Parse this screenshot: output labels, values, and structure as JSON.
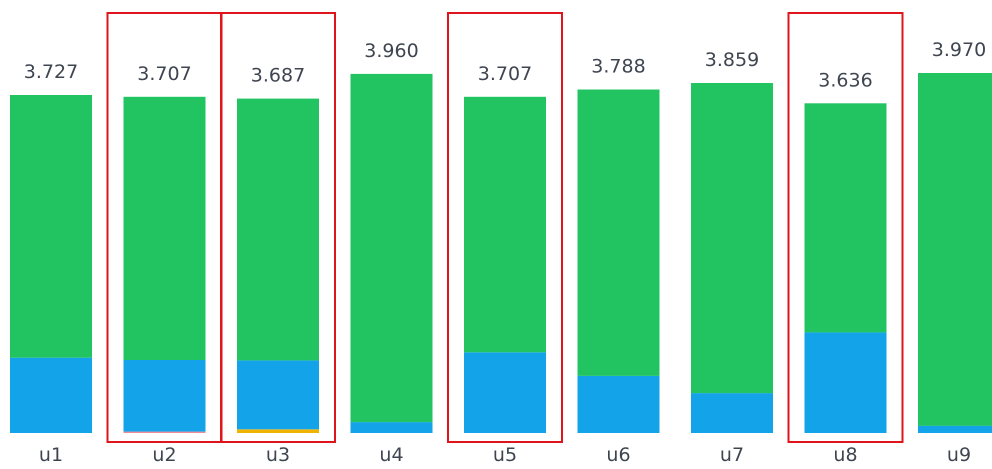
{
  "chart_data": {
    "type": "bar",
    "stacked": true,
    "categories": [
      "u1",
      "u2",
      "u3",
      "u4",
      "u5",
      "u6",
      "u7",
      "u8",
      "u9"
    ],
    "totals": [
      "3.727",
      "3.707",
      "3.687",
      "3.960",
      "3.707",
      "3.788",
      "3.859",
      "3.636",
      "3.970"
    ],
    "series": [
      {
        "color": "#f0b400",
        "values": [
          0,
          0,
          0.04,
          0,
          0,
          0,
          0,
          0,
          0
        ]
      },
      {
        "color": "#f28b96",
        "values": [
          0,
          0.015,
          0,
          0,
          0,
          0,
          0,
          0,
          0
        ]
      },
      {
        "color": "#12a3e8",
        "values": [
          0.83,
          0.79,
          0.76,
          0.12,
          0.89,
          0.63,
          0.44,
          1.11,
          0.08
        ]
      },
      {
        "color": "#22c462",
        "values": [
          2.897,
          2.902,
          2.887,
          3.84,
          2.817,
          3.158,
          3.419,
          2.526,
          3.89
        ]
      }
    ],
    "highlighted": [
      "u2",
      "u3",
      "u5",
      "u8"
    ],
    "highlight_color": "#e0151b",
    "grid": false,
    "legend": "none"
  }
}
